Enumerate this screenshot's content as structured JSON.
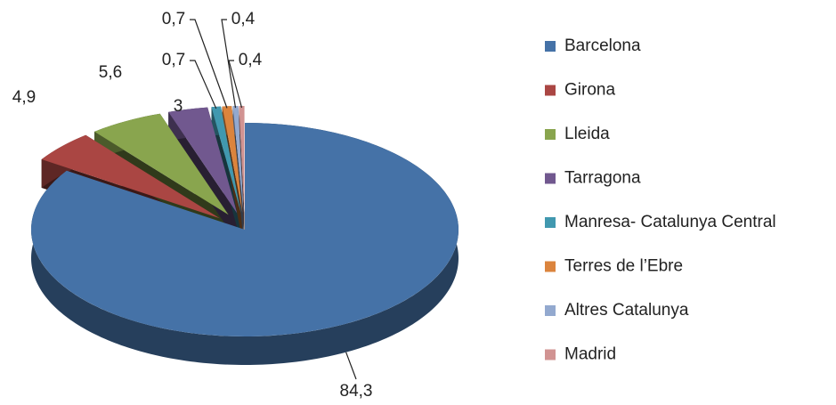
{
  "chart_data": {
    "type": "pie",
    "three_d": true,
    "categories": [
      "Barcelona",
      "Girona",
      "Lleida",
      "Tarragona",
      "Manresa- Catalunya Central",
      "Terres de l’Ebre",
      "Altres Catalunya",
      "Madrid"
    ],
    "values": [
      84.3,
      4.9,
      5.6,
      3,
      0.7,
      0.7,
      0.4,
      0.4
    ],
    "value_labels": [
      "84,3",
      "4,9",
      "5,6",
      "3",
      "0,7",
      "0,7",
      "0,4",
      "0,4"
    ],
    "colors": [
      "#4572a7",
      "#aa4643",
      "#89a54e",
      "#71588f",
      "#4198af",
      "#db843d",
      "#93a9cf",
      "#d19392"
    ],
    "legend": "right"
  }
}
